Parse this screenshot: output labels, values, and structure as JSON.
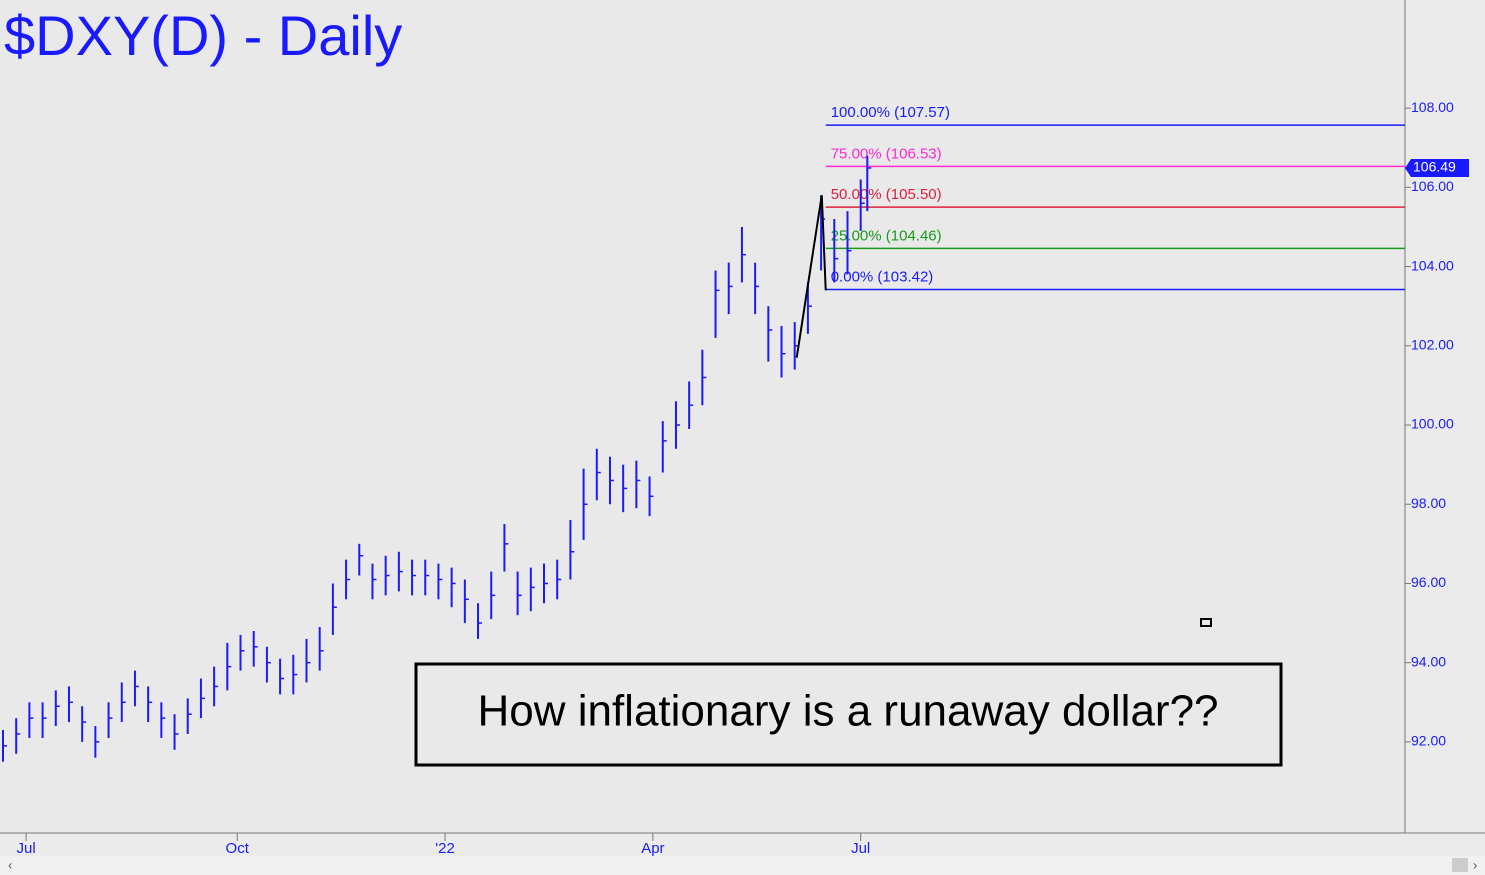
{
  "chart_data": {
    "type": "hlc",
    "title": "$DXY(D) - Daily",
    "annotation": "How inflationary is a runaway dollar??",
    "color": "#1a1aff",
    "x": [
      0,
      4,
      8,
      12,
      16,
      20,
      24,
      28,
      32,
      36,
      40,
      44,
      48,
      52,
      56,
      60,
      64,
      68,
      72,
      76,
      80,
      84,
      88,
      92,
      96,
      100,
      104,
      108,
      112,
      116,
      120,
      124,
      128,
      132,
      136,
      140,
      144,
      148,
      152,
      156,
      160,
      164,
      168,
      172,
      176,
      180,
      184,
      188,
      192,
      196,
      200,
      204,
      208,
      212,
      216,
      220,
      224,
      228,
      232,
      236,
      240,
      244,
      248,
      252,
      256,
      260,
      262
    ],
    "high": [
      92.3,
      92.6,
      93.0,
      93.0,
      93.3,
      93.4,
      92.9,
      92.4,
      93.0,
      93.5,
      93.8,
      93.4,
      93.0,
      92.7,
      93.1,
      93.6,
      93.9,
      94.5,
      94.7,
      94.8,
      94.4,
      94.1,
      94.2,
      94.6,
      94.9,
      96.0,
      96.6,
      97.0,
      96.5,
      96.7,
      96.8,
      96.6,
      96.6,
      96.5,
      96.4,
      96.1,
      95.5,
      96.3,
      97.5,
      96.3,
      96.4,
      96.5,
      96.6,
      97.6,
      98.9,
      99.4,
      99.2,
      99.0,
      99.1,
      98.7,
      100.1,
      100.6,
      101.1,
      101.9,
      103.9,
      104.1,
      105.0,
      104.1,
      103.0,
      102.5,
      102.6,
      103.6,
      105.8,
      105.2,
      105.4,
      106.2,
      106.8
    ],
    "low": [
      91.5,
      91.7,
      92.1,
      92.1,
      92.4,
      92.5,
      92.0,
      91.6,
      92.1,
      92.5,
      92.9,
      92.5,
      92.1,
      91.8,
      92.2,
      92.6,
      92.9,
      93.3,
      93.8,
      93.9,
      93.5,
      93.2,
      93.2,
      93.5,
      93.8,
      94.7,
      95.6,
      96.2,
      95.6,
      95.7,
      95.8,
      95.7,
      95.7,
      95.6,
      95.4,
      95.0,
      94.6,
      95.1,
      96.3,
      95.2,
      95.3,
      95.5,
      95.6,
      96.1,
      97.1,
      98.1,
      98.0,
      97.8,
      97.9,
      97.7,
      98.8,
      99.4,
      99.9,
      100.5,
      102.2,
      102.8,
      103.6,
      102.8,
      101.6,
      101.2,
      101.4,
      102.3,
      103.9,
      103.6,
      103.8,
      104.9,
      105.4
    ],
    "close": [
      91.9,
      92.2,
      92.6,
      92.6,
      92.9,
      93.0,
      92.5,
      92.0,
      92.6,
      93.0,
      93.4,
      93.0,
      92.6,
      92.2,
      92.7,
      93.1,
      93.4,
      93.9,
      94.3,
      94.4,
      94.0,
      93.6,
      93.7,
      94.0,
      94.3,
      95.4,
      96.1,
      96.7,
      96.1,
      96.2,
      96.3,
      96.2,
      96.2,
      96.1,
      96.0,
      95.6,
      95.0,
      95.7,
      97.0,
      95.7,
      95.9,
      96.0,
      96.1,
      96.8,
      98.0,
      98.8,
      98.6,
      98.4,
      98.6,
      98.2,
      99.6,
      100.0,
      100.5,
      101.2,
      103.4,
      103.5,
      104.3,
      103.5,
      102.4,
      101.8,
      102.0,
      103.0,
      105.2,
      104.2,
      104.4,
      105.6,
      106.49
    ],
    "last_price": 106.49,
    "pattern": {
      "color": "#000000",
      "x": [
        240.6,
        248.2,
        249.4
      ],
      "y": [
        101.7,
        105.8,
        103.4
      ]
    },
    "fib_levels": [
      {
        "label": "100.00% (107.57)",
        "value": 107.57,
        "color": "#1a1aff"
      },
      {
        "label": "75.00% (106.53)",
        "value": 106.53,
        "color": "#ff2ad4"
      },
      {
        "label": "50.00% (105.50)",
        "value": 105.5,
        "color": "#e0203c"
      },
      {
        "label": "25.00% (104.46)",
        "value": 104.46,
        "color": "#1a9a1a"
      },
      {
        "label": "0.00% (103.42)",
        "value": 103.42,
        "color": "#1a1aff"
      }
    ],
    "fib_start_x": 249.4,
    "xlim": [
      0,
      425
    ],
    "xticks": [
      {
        "value": 7,
        "label": "Jul"
      },
      {
        "value": 71,
        "label": "Oct"
      },
      {
        "value": 134,
        "label": "'22"
      },
      {
        "value": 197,
        "label": "Apr"
      },
      {
        "value": 260,
        "label": "Jul"
      }
    ],
    "ylim": [
      89.7,
      110.73
    ],
    "yticks": [
      {
        "value": 92,
        "label": "92.00"
      },
      {
        "value": 94,
        "label": "94.00"
      },
      {
        "value": 96,
        "label": "96.00"
      },
      {
        "value": 98,
        "label": "98.00"
      },
      {
        "value": 100,
        "label": "100.00"
      },
      {
        "value": 102,
        "label": "102.00"
      },
      {
        "value": 104,
        "label": "104.00"
      },
      {
        "value": 106,
        "label": "106.00"
      },
      {
        "value": 108,
        "label": "108.00"
      }
    ],
    "grid": false
  }
}
